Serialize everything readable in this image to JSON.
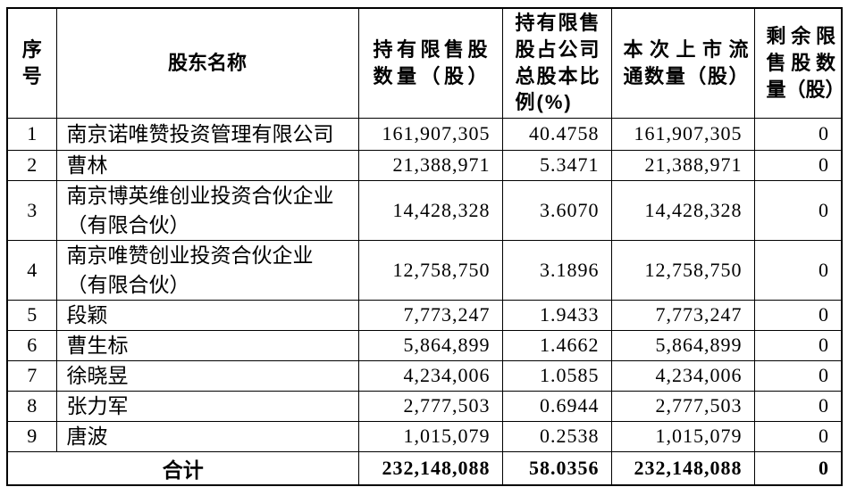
{
  "table": {
    "columns": [
      {
        "label": "序\n号"
      },
      {
        "label": "股东名称"
      },
      {
        "label": "持有限售股\n数量（股）"
      },
      {
        "label": "持有限售\n股占公司\n总股本比\n例(%)"
      },
      {
        "label": "本次上市流\n通数量（股）"
      },
      {
        "label": "剩余限\n售股数\n量（股）"
      }
    ],
    "rows": [
      {
        "no": "1",
        "name": "南京诺唯赞投资管理有限公司",
        "held": "161,907,305",
        "ratio": "40.4758",
        "listed": "161,907,305",
        "remaining": "0"
      },
      {
        "no": "2",
        "name": "曹林",
        "held": "21,388,971",
        "ratio": "5.3471",
        "listed": "21,388,971",
        "remaining": "0"
      },
      {
        "no": "3",
        "name": "南京博英维创业投资合伙企业\n（有限合伙）",
        "held": "14,428,328",
        "ratio": "3.6070",
        "listed": "14,428,328",
        "remaining": "0"
      },
      {
        "no": "4",
        "name": "南京唯赞创业投资合伙企业\n（有限合伙）",
        "held": "12,758,750",
        "ratio": "3.1896",
        "listed": "12,758,750",
        "remaining": "0"
      },
      {
        "no": "5",
        "name": "段颖",
        "held": "7,773,247",
        "ratio": "1.9433",
        "listed": "7,773,247",
        "remaining": "0"
      },
      {
        "no": "6",
        "name": "曹生标",
        "held": "5,864,899",
        "ratio": "1.4662",
        "listed": "5,864,899",
        "remaining": "0"
      },
      {
        "no": "7",
        "name": "徐晓昱",
        "held": "4,234,006",
        "ratio": "1.0585",
        "listed": "4,234,006",
        "remaining": "0"
      },
      {
        "no": "8",
        "name": "张力军",
        "held": "2,777,503",
        "ratio": "0.6944",
        "listed": "2,777,503",
        "remaining": "0"
      },
      {
        "no": "9",
        "name": "唐波",
        "held": "1,015,079",
        "ratio": "0.2538",
        "listed": "1,015,079",
        "remaining": "0"
      }
    ],
    "total": {
      "label": "合计",
      "held": "232,148,088",
      "ratio": "58.0356",
      "listed": "232,148,088",
      "remaining": "0"
    }
  },
  "colors": {
    "text": "#000000",
    "border": "#000000",
    "background": "#ffffff"
  }
}
